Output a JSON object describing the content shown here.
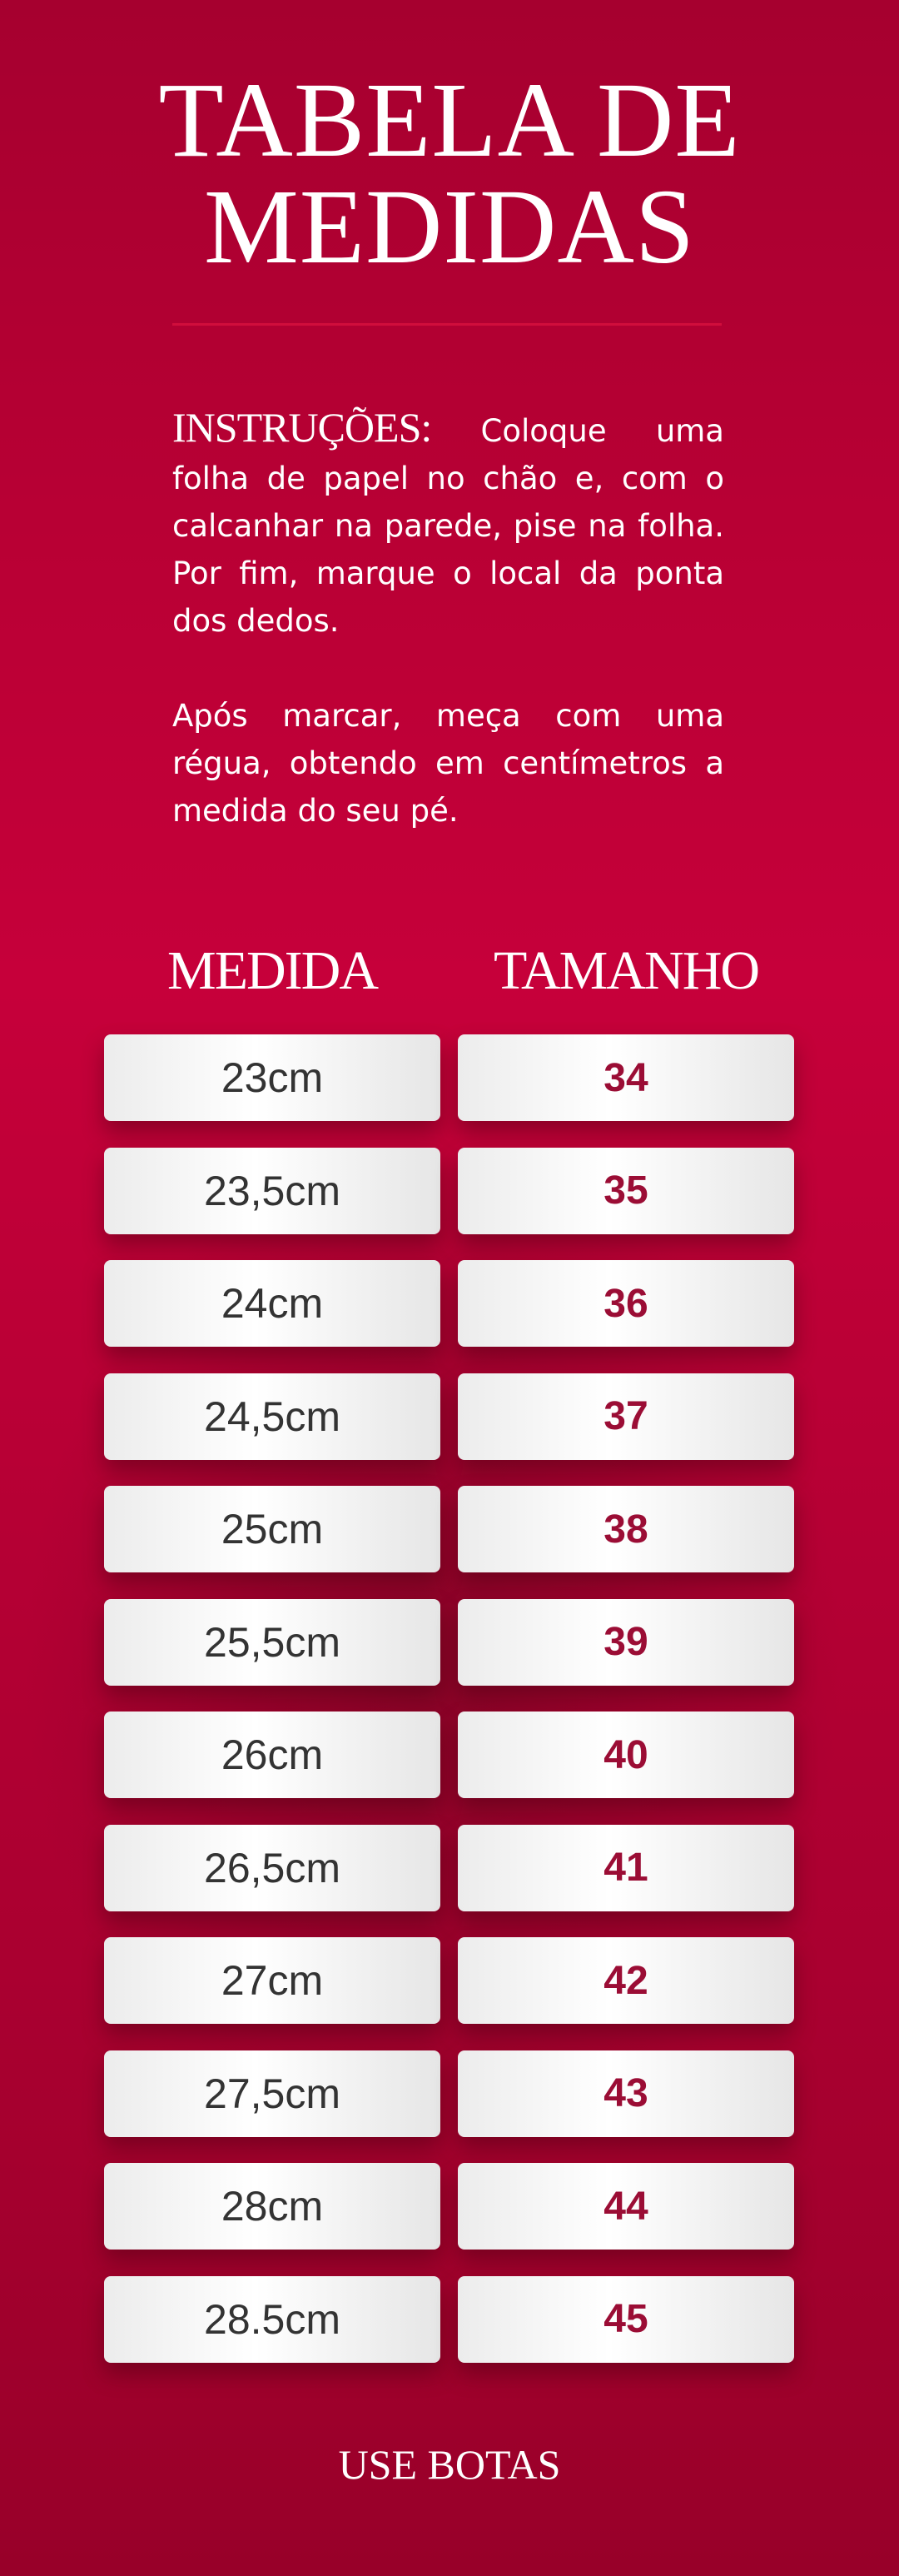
{
  "title": {
    "line1": "TABELA DE",
    "line2": "MEDIDAS"
  },
  "instructions": {
    "label": "INSTRUÇÕES:",
    "text1": "Coloque uma folha de papel no chão e, com o calcanhar na parede, pise na folha. Por fim, marque o local da ponta dos dedos.",
    "text2": "Após marcar, meça com uma régua, obtendo em centímetros a medida do seu pé."
  },
  "table": {
    "headers": [
      "MEDIDA",
      "TAMANHO"
    ],
    "rows": [
      {
        "medida": "23cm",
        "tamanho": "34"
      },
      {
        "medida": "23,5cm",
        "tamanho": "35"
      },
      {
        "medida": "24cm",
        "tamanho": "36"
      },
      {
        "medida": "24,5cm",
        "tamanho": "37"
      },
      {
        "medida": "25cm",
        "tamanho": "38"
      },
      {
        "medida": "25,5cm",
        "tamanho": "39"
      },
      {
        "medida": "26cm",
        "tamanho": "40"
      },
      {
        "medida": "26,5cm",
        "tamanho": "41"
      },
      {
        "medida": "27cm",
        "tamanho": "42"
      },
      {
        "medida": "27,5cm",
        "tamanho": "43"
      },
      {
        "medida": "28cm",
        "tamanho": "44"
      },
      {
        "medida": "28.5cm",
        "tamanho": "45"
      }
    ]
  },
  "footer": "USE BOTAS",
  "colors": {
    "background": "#b80034",
    "size_text": "#9b0d35",
    "measure_text": "#333333"
  }
}
